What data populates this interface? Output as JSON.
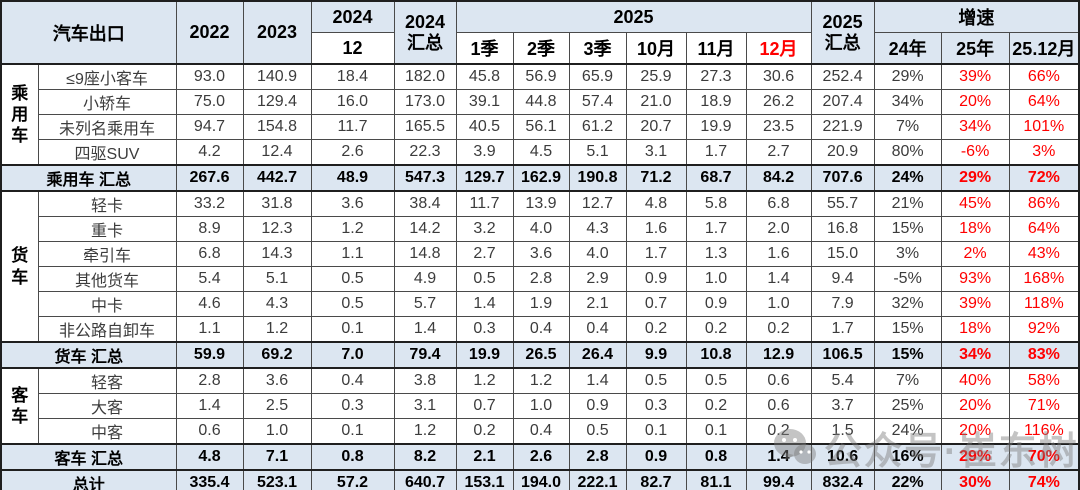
{
  "chart_data": {
    "type": "table",
    "title": "汽车出口",
    "units_note": "",
    "header": {
      "title": "汽车出口",
      "y2022": "2022",
      "y2023": "2023",
      "y2024": "2024",
      "sub2024": "12",
      "total2024": "2024\n汇总",
      "y2025": "2025",
      "sub2025": [
        "1季",
        "2季",
        "3季",
        "10月",
        "11月",
        "12月"
      ],
      "total2025": "2025\n汇总",
      "growth": "增速",
      "growth_subs": [
        "24年",
        "25年",
        "25.12月"
      ]
    },
    "value_columns": [
      "2022",
      "2023",
      "2024-12",
      "2024汇总",
      "2025-1季",
      "2025-2季",
      "2025-3季",
      "2025-10月",
      "2025-11月",
      "2025-12月",
      "2025汇总",
      "增速24年",
      "增速25年",
      "增速25.12月"
    ],
    "rows": [
      {
        "group": "乘用车",
        "group_span": 4,
        "label": "≤9座小客车",
        "values": [
          "93.0",
          "140.9",
          "18.4",
          "182.0",
          "45.8",
          "56.9",
          "65.9",
          "25.9",
          "27.3",
          "30.6",
          "252.4",
          "29%",
          "39%",
          "66%"
        ]
      },
      {
        "label": "小轿车",
        "values": [
          "75.0",
          "129.4",
          "16.0",
          "173.0",
          "39.1",
          "44.8",
          "57.4",
          "21.0",
          "18.9",
          "26.2",
          "207.4",
          "34%",
          "20%",
          "64%"
        ]
      },
      {
        "label": "未列名乘用车",
        "values": [
          "94.7",
          "154.8",
          "11.7",
          "165.5",
          "40.5",
          "56.1",
          "61.2",
          "20.7",
          "19.9",
          "23.5",
          "221.9",
          "7%",
          "34%",
          "101%"
        ]
      },
      {
        "label": "四驱SUV",
        "values": [
          "4.2",
          "12.4",
          "2.6",
          "22.3",
          "3.9",
          "4.5",
          "5.1",
          "3.1",
          "1.7",
          "2.7",
          "20.9",
          "80%",
          "-6%",
          "3%"
        ]
      },
      {
        "summary": true,
        "label": "乘用车 汇总",
        "values": [
          "267.6",
          "442.7",
          "48.9",
          "547.3",
          "129.7",
          "162.9",
          "190.8",
          "71.2",
          "68.7",
          "84.2",
          "707.6",
          "24%",
          "29%",
          "72%"
        ]
      },
      {
        "group": "货车",
        "group_span": 6,
        "label": "轻卡",
        "values": [
          "33.2",
          "31.8",
          "3.6",
          "38.4",
          "11.7",
          "13.9",
          "12.7",
          "4.8",
          "5.8",
          "6.8",
          "55.7",
          "21%",
          "45%",
          "86%"
        ]
      },
      {
        "label": "重卡",
        "values": [
          "8.9",
          "12.3",
          "1.2",
          "14.2",
          "3.2",
          "4.0",
          "4.3",
          "1.6",
          "1.7",
          "2.0",
          "16.8",
          "15%",
          "18%",
          "64%"
        ]
      },
      {
        "label": "牵引车",
        "values": [
          "6.8",
          "14.3",
          "1.1",
          "14.8",
          "2.7",
          "3.6",
          "4.0",
          "1.7",
          "1.3",
          "1.6",
          "15.0",
          "3%",
          "2%",
          "43%"
        ]
      },
      {
        "label": "其他货车",
        "values": [
          "5.4",
          "5.1",
          "0.5",
          "4.9",
          "0.5",
          "2.8",
          "2.9",
          "0.9",
          "1.0",
          "1.4",
          "9.4",
          "-5%",
          "93%",
          "168%"
        ]
      },
      {
        "label": "中卡",
        "values": [
          "4.6",
          "4.3",
          "0.5",
          "5.7",
          "1.4",
          "1.9",
          "2.1",
          "0.7",
          "0.9",
          "1.0",
          "7.9",
          "32%",
          "39%",
          "118%"
        ]
      },
      {
        "label": "非公路自卸车",
        "values": [
          "1.1",
          "1.2",
          "0.1",
          "1.4",
          "0.3",
          "0.4",
          "0.4",
          "0.2",
          "0.2",
          "0.2",
          "1.7",
          "15%",
          "18%",
          "92%"
        ]
      },
      {
        "summary": true,
        "label": "货车 汇总",
        "values": [
          "59.9",
          "69.2",
          "7.0",
          "79.4",
          "19.9",
          "26.5",
          "26.4",
          "9.9",
          "10.8",
          "12.9",
          "106.5",
          "15%",
          "34%",
          "83%"
        ]
      },
      {
        "group": "客车",
        "group_span": 3,
        "label": "轻客",
        "values": [
          "2.8",
          "3.6",
          "0.4",
          "3.8",
          "1.2",
          "1.2",
          "1.4",
          "0.5",
          "0.5",
          "0.6",
          "5.4",
          "7%",
          "40%",
          "58%"
        ]
      },
      {
        "label": "大客",
        "values": [
          "1.4",
          "2.5",
          "0.3",
          "3.1",
          "0.7",
          "1.0",
          "0.9",
          "0.3",
          "0.2",
          "0.6",
          "3.7",
          "25%",
          "20%",
          "71%"
        ]
      },
      {
        "label": "中客",
        "values": [
          "0.6",
          "1.0",
          "0.1",
          "1.2",
          "0.2",
          "0.4",
          "0.5",
          "0.1",
          "0.1",
          "0.2",
          "1.5",
          "24%",
          "20%",
          "116%"
        ]
      },
      {
        "summary": true,
        "label": "客车 汇总",
        "values": [
          "4.8",
          "7.1",
          "0.8",
          "8.2",
          "2.1",
          "2.6",
          "2.8",
          "0.9",
          "0.8",
          "1.4",
          "10.6",
          "16%",
          "29%",
          "70%"
        ]
      },
      {
        "summary": true,
        "label": "总计",
        "values": [
          "335.4",
          "523.1",
          "57.2",
          "640.7",
          "153.1",
          "194.0",
          "222.1",
          "82.7",
          "81.1",
          "99.4",
          "832.4",
          "22%",
          "30%",
          "74%"
        ]
      }
    ],
    "layout": {
      "red_value_columns": [
        "增速25年",
        "增速25.12月"
      ],
      "red_header": "12月",
      "accent_bg": "#dce6f1",
      "red_color": "#ff0000"
    }
  },
  "watermark": {
    "icon": "wechat-icon",
    "text": "公众号·崔东树"
  }
}
